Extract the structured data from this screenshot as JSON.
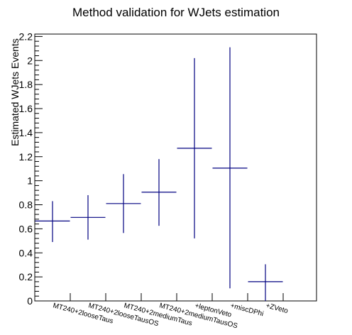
{
  "chart_data": {
    "type": "errorbar",
    "title": "Method validation for WJets estimation",
    "xlabel": "",
    "ylabel": "Estimated WJets Events",
    "ylim": [
      0,
      2.22
    ],
    "yticks": [
      0,
      0.2,
      0.4,
      0.6,
      0.8,
      1,
      1.2,
      1.4,
      1.6,
      1.8,
      2,
      2.2
    ],
    "categories": [
      "MT240+2looseTaus",
      "MT240+2looseTausOS",
      "MT240+2mediumTaus",
      "MT240+2mediumTausOS",
      "+leptonVeto",
      "+miscDPhi",
      "+ZVeto"
    ],
    "series": [
      {
        "values": [
          0.665,
          0.695,
          0.81,
          0.905,
          1.27,
          1.105,
          0.16
        ],
        "err_low": [
          0.175,
          0.185,
          0.245,
          0.28,
          0.75,
          1.0,
          0.16
        ],
        "err_high": [
          0.165,
          0.185,
          0.245,
          0.275,
          0.75,
          1.005,
          0.145
        ],
        "color": "#000080"
      }
    ],
    "grid": false,
    "legend": "none"
  }
}
